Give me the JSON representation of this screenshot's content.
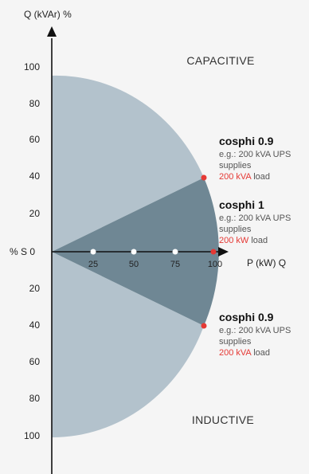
{
  "axes": {
    "y_title": "Q (kVAr) %",
    "origin_label": "% S 0",
    "x_title": "P (kW) Q",
    "y_ticks_upper": [
      "100",
      "80",
      "60",
      "40",
      "20"
    ],
    "y_ticks_lower": [
      "20",
      "40",
      "60",
      "80",
      "100"
    ],
    "x_ticks": [
      "25",
      "50",
      "75",
      "100"
    ]
  },
  "regions": {
    "capacitive": "CAPACITIVE",
    "inductive": "INDUCTIVE"
  },
  "annotations": [
    {
      "title": "cosphi 0.9",
      "line1": "e.g.: 200 kVA UPS",
      "line2": "supplies",
      "highlight": "200 kVA",
      "suffix": " load"
    },
    {
      "title": "cosphi 1",
      "line1": "e.g.: 200 kVA UPS",
      "line2": "supplies",
      "highlight": "200 kW",
      "suffix": " load"
    },
    {
      "title": "cosphi 0.9",
      "line1": "e.g.: 200 kVA UPS",
      "line2": "supplies",
      "highlight": "200 kVA",
      "suffix": " load"
    }
  ],
  "colors": {
    "background": "#f5f5f5",
    "outer_sector": "#b3c2cc",
    "inner_sector": "#6f8794",
    "axis": "#111111",
    "marker_red": "#e53935",
    "marker_white": "#ffffff"
  }
}
